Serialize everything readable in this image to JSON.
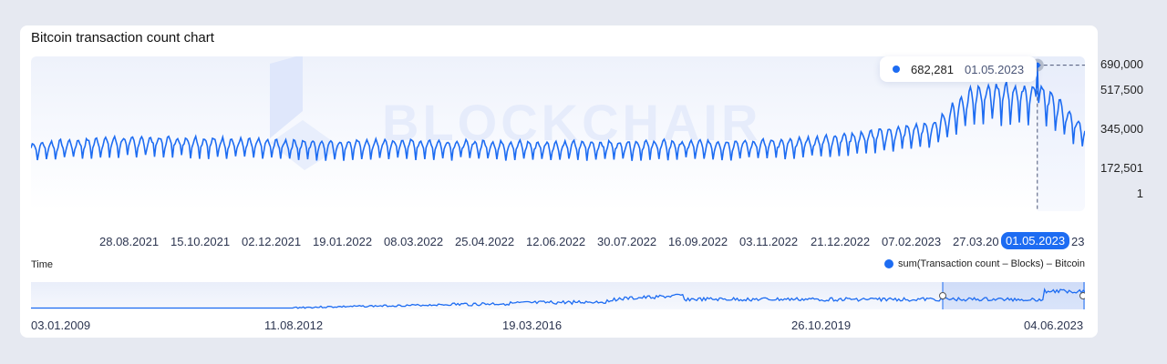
{
  "card": {
    "title": "Bitcoin transaction count chart",
    "watermark": "BLOCKCHAIR"
  },
  "tooltip": {
    "value": "682,281",
    "date": "01.05.2023"
  },
  "y_axis": {
    "ticks": [
      "690,000",
      "517,500",
      "345,000",
      "172,501",
      "1"
    ]
  },
  "x_axis": {
    "ticks": [
      "28.08.2021",
      "15.10.2021",
      "02.12.2021",
      "19.01.2022",
      "08.03.2022",
      "25.04.2022",
      "12.06.2022",
      "30.07.2022",
      "16.09.2022",
      "03.11.2022",
      "21.12.2022",
      "07.02.2023",
      "27.03.20",
      "23"
    ],
    "selected": "01.05.2023",
    "label": "Time"
  },
  "legend": {
    "label": "sum(Transaction count – Blocks) – Bitcoin",
    "color": "#1d6cf2"
  },
  "navigator": {
    "ticks": [
      "03.01.2009",
      "11.08.2012",
      "19.03.2016",
      "26.10.2019",
      "04.06.2023"
    ]
  },
  "chart_data": {
    "type": "line",
    "title": "Bitcoin transaction count chart",
    "xlabel": "Time",
    "ylabel": "",
    "ylim": [
      1,
      690000
    ],
    "x": [
      "28.08.2021",
      "15.10.2021",
      "02.12.2021",
      "19.01.2022",
      "08.03.2022",
      "25.04.2022",
      "12.06.2022",
      "30.07.2022",
      "16.09.2022",
      "03.11.2022",
      "21.12.2022",
      "07.02.2023",
      "27.03.2023",
      "01.05.2023",
      "04.06.2023"
    ],
    "series": [
      {
        "name": "sum(Transaction count – Blocks) – Bitcoin",
        "values": [
          240000,
          265000,
          270000,
          255000,
          250000,
          255000,
          250000,
          245000,
          250000,
          250000,
          255000,
          290000,
          340000,
          682281,
          320000
        ]
      }
    ],
    "highlight": {
      "x": "01.05.2023",
      "y": 682281
    },
    "grid": false,
    "legend_position": "bottom-right"
  }
}
